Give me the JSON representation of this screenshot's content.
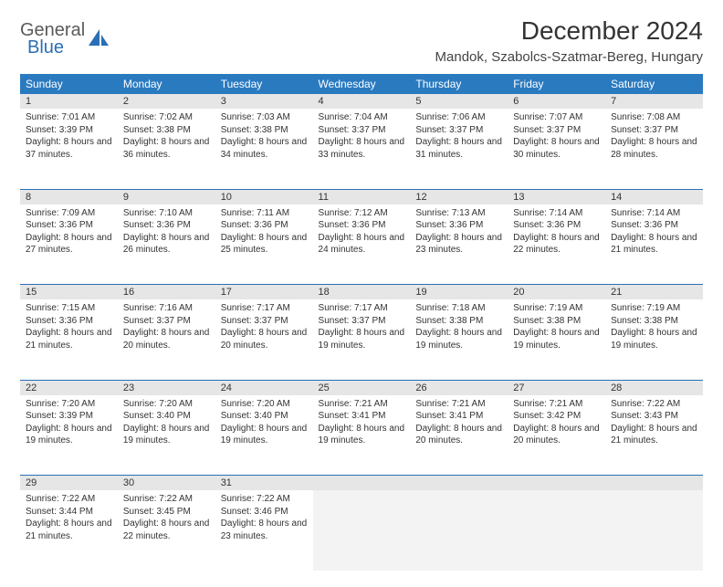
{
  "brand": {
    "part1": "General",
    "part2": "Blue"
  },
  "title": "December 2024",
  "location": "Mandok, Szabolcs-Szatmar-Bereg, Hungary",
  "colors": {
    "header_bg": "#2a7ac0",
    "header_fg": "#ffffff",
    "daynum_bg": "#e6e6e6",
    "rule": "#2a6fb5",
    "brand_blue": "#2a6fb5",
    "brand_gray": "#5a5a5a"
  },
  "weekdays": [
    "Sunday",
    "Monday",
    "Tuesday",
    "Wednesday",
    "Thursday",
    "Friday",
    "Saturday"
  ],
  "weeks": [
    [
      {
        "n": "1",
        "sr": "7:01 AM",
        "ss": "3:39 PM",
        "dl": "8 hours and 37 minutes."
      },
      {
        "n": "2",
        "sr": "7:02 AM",
        "ss": "3:38 PM",
        "dl": "8 hours and 36 minutes."
      },
      {
        "n": "3",
        "sr": "7:03 AM",
        "ss": "3:38 PM",
        "dl": "8 hours and 34 minutes."
      },
      {
        "n": "4",
        "sr": "7:04 AM",
        "ss": "3:37 PM",
        "dl": "8 hours and 33 minutes."
      },
      {
        "n": "5",
        "sr": "7:06 AM",
        "ss": "3:37 PM",
        "dl": "8 hours and 31 minutes."
      },
      {
        "n": "6",
        "sr": "7:07 AM",
        "ss": "3:37 PM",
        "dl": "8 hours and 30 minutes."
      },
      {
        "n": "7",
        "sr": "7:08 AM",
        "ss": "3:37 PM",
        "dl": "8 hours and 28 minutes."
      }
    ],
    [
      {
        "n": "8",
        "sr": "7:09 AM",
        "ss": "3:36 PM",
        "dl": "8 hours and 27 minutes."
      },
      {
        "n": "9",
        "sr": "7:10 AM",
        "ss": "3:36 PM",
        "dl": "8 hours and 26 minutes."
      },
      {
        "n": "10",
        "sr": "7:11 AM",
        "ss": "3:36 PM",
        "dl": "8 hours and 25 minutes."
      },
      {
        "n": "11",
        "sr": "7:12 AM",
        "ss": "3:36 PM",
        "dl": "8 hours and 24 minutes."
      },
      {
        "n": "12",
        "sr": "7:13 AM",
        "ss": "3:36 PM",
        "dl": "8 hours and 23 minutes."
      },
      {
        "n": "13",
        "sr": "7:14 AM",
        "ss": "3:36 PM",
        "dl": "8 hours and 22 minutes."
      },
      {
        "n": "14",
        "sr": "7:14 AM",
        "ss": "3:36 PM",
        "dl": "8 hours and 21 minutes."
      }
    ],
    [
      {
        "n": "15",
        "sr": "7:15 AM",
        "ss": "3:36 PM",
        "dl": "8 hours and 21 minutes."
      },
      {
        "n": "16",
        "sr": "7:16 AM",
        "ss": "3:37 PM",
        "dl": "8 hours and 20 minutes."
      },
      {
        "n": "17",
        "sr": "7:17 AM",
        "ss": "3:37 PM",
        "dl": "8 hours and 20 minutes."
      },
      {
        "n": "18",
        "sr": "7:17 AM",
        "ss": "3:37 PM",
        "dl": "8 hours and 19 minutes."
      },
      {
        "n": "19",
        "sr": "7:18 AM",
        "ss": "3:38 PM",
        "dl": "8 hours and 19 minutes."
      },
      {
        "n": "20",
        "sr": "7:19 AM",
        "ss": "3:38 PM",
        "dl": "8 hours and 19 minutes."
      },
      {
        "n": "21",
        "sr": "7:19 AM",
        "ss": "3:38 PM",
        "dl": "8 hours and 19 minutes."
      }
    ],
    [
      {
        "n": "22",
        "sr": "7:20 AM",
        "ss": "3:39 PM",
        "dl": "8 hours and 19 minutes."
      },
      {
        "n": "23",
        "sr": "7:20 AM",
        "ss": "3:40 PM",
        "dl": "8 hours and 19 minutes."
      },
      {
        "n": "24",
        "sr": "7:20 AM",
        "ss": "3:40 PM",
        "dl": "8 hours and 19 minutes."
      },
      {
        "n": "25",
        "sr": "7:21 AM",
        "ss": "3:41 PM",
        "dl": "8 hours and 19 minutes."
      },
      {
        "n": "26",
        "sr": "7:21 AM",
        "ss": "3:41 PM",
        "dl": "8 hours and 20 minutes."
      },
      {
        "n": "27",
        "sr": "7:21 AM",
        "ss": "3:42 PM",
        "dl": "8 hours and 20 minutes."
      },
      {
        "n": "28",
        "sr": "7:22 AM",
        "ss": "3:43 PM",
        "dl": "8 hours and 21 minutes."
      }
    ],
    [
      {
        "n": "29",
        "sr": "7:22 AM",
        "ss": "3:44 PM",
        "dl": "8 hours and 21 minutes."
      },
      {
        "n": "30",
        "sr": "7:22 AM",
        "ss": "3:45 PM",
        "dl": "8 hours and 22 minutes."
      },
      {
        "n": "31",
        "sr": "7:22 AM",
        "ss": "3:46 PM",
        "dl": "8 hours and 23 minutes."
      },
      null,
      null,
      null,
      null
    ]
  ],
  "labels": {
    "sunrise": "Sunrise:",
    "sunset": "Sunset:",
    "daylight": "Daylight:"
  }
}
